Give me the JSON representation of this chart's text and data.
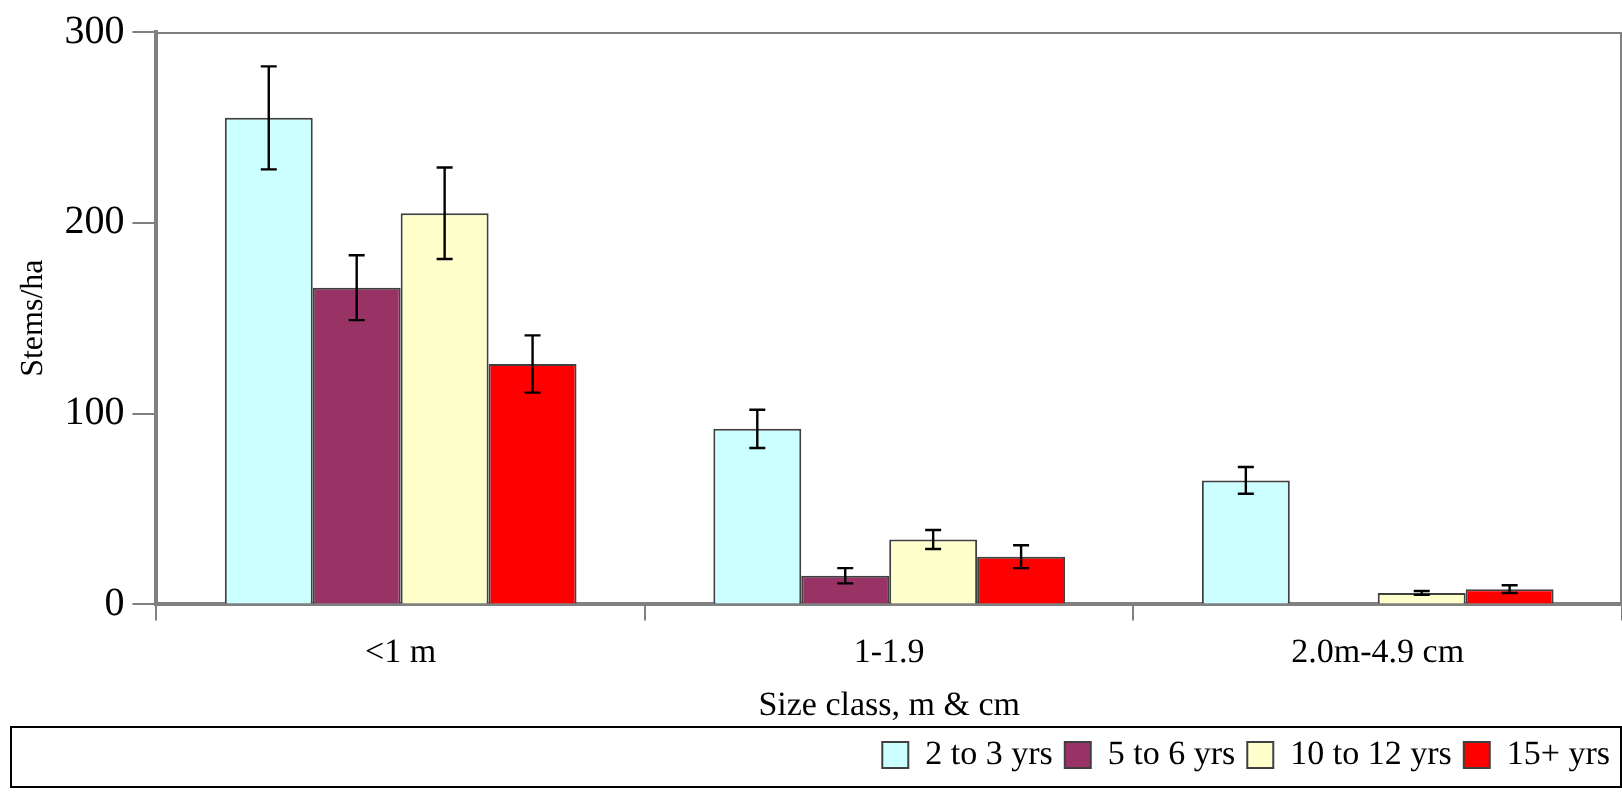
{
  "chart_data": {
    "type": "bar",
    "xlabel": "Size class, m & cm",
    "ylabel": "Stems/ha",
    "categories": [
      "<1 m",
      "1-1.9",
      "2.0m-4.9 cm"
    ],
    "series": [
      {
        "name": "2 to 3 yrs",
        "color": "#ccffff",
        "values": [
          255,
          92,
          65
        ],
        "errors": [
          27,
          10,
          7
        ]
      },
      {
        "name": "5 to 6 yrs",
        "color": "#993366",
        "values": [
          166,
          15,
          0
        ],
        "errors": [
          17,
          4,
          null
        ]
      },
      {
        "name": "10 to 12 yrs",
        "color": "#ffffcc",
        "values": [
          205,
          34,
          6
        ],
        "errors": [
          24,
          5,
          1
        ]
      },
      {
        "name": "15+ yrs",
        "color": "#ff0000",
        "values": [
          126,
          25,
          8
        ],
        "errors": [
          15,
          6,
          2
        ]
      }
    ],
    "ylim": [
      0,
      300
    ],
    "yticks": [
      0,
      100,
      200,
      300
    ],
    "grid": false,
    "legend": "bottom right"
  }
}
